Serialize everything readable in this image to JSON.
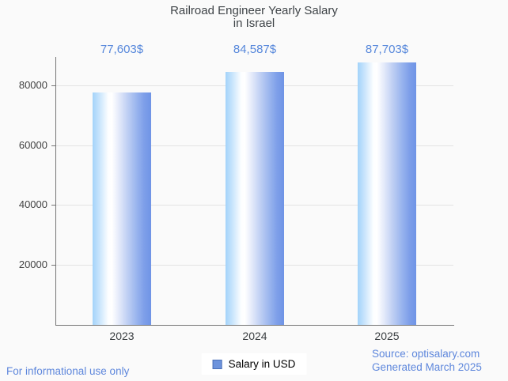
{
  "header": {
    "title_line1": "Railroad Engineer Yearly Salary",
    "title_line2": "in Israel"
  },
  "chart_data": {
    "type": "bar",
    "title": "Railroad Engineer Yearly Salary in Israel",
    "categories": [
      "2023",
      "2024",
      "2025"
    ],
    "series": [
      {
        "name": "Salary in USD",
        "values": [
          77603,
          84587,
          87703
        ]
      }
    ],
    "value_labels": [
      "77,603$",
      "84,587$",
      "87,703$"
    ],
    "yticks": [
      20000,
      40000,
      60000,
      80000
    ],
    "ytick_labels": [
      "20000",
      "40000",
      "60000",
      "80000"
    ],
    "ylim": [
      0,
      89500
    ],
    "xlabel": "",
    "ylabel": "",
    "grid": "horizontal",
    "legend_position": "bottom-center",
    "colors": {
      "background": "#fafafa",
      "bar_gradient": [
        "#a3d3fa",
        "#ffffff",
        "#6f94e6"
      ],
      "value_label": "#5687db",
      "axis": "#757575",
      "gridline": "#e4e4e4",
      "title": "#3e4347",
      "footer_link": "#5e87dc"
    }
  },
  "legend": {
    "label": "Salary in USD",
    "swatch_fill": "#6d93dc",
    "swatch_border": "#4a70b8"
  },
  "footer": {
    "disclaimer": "For informational use only",
    "source_line1": "Source: optisalary.com",
    "source_line2": "Generated March 2025"
  }
}
